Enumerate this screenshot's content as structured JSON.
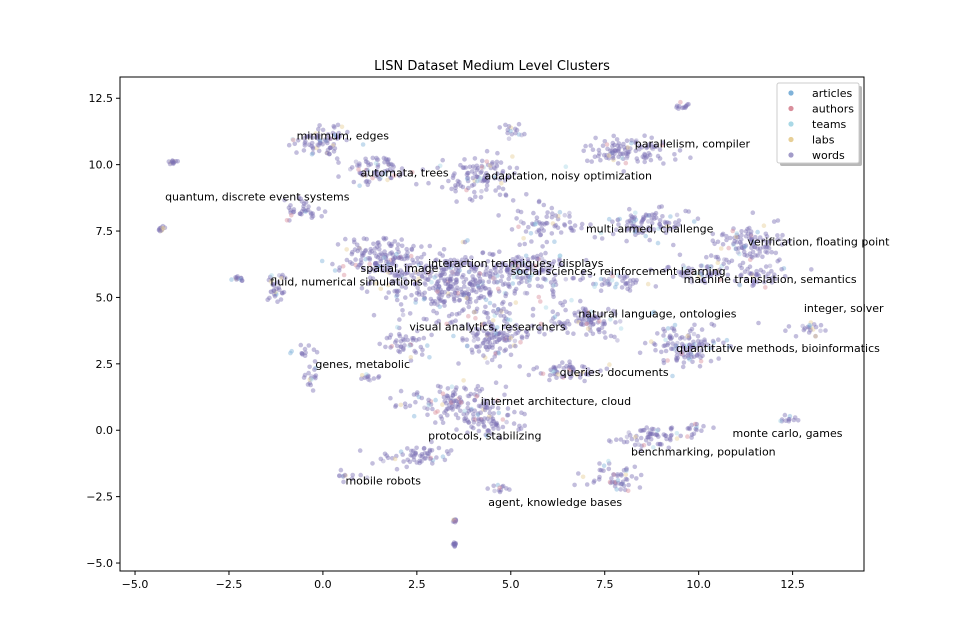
{
  "chart_data": {
    "type": "scatter",
    "title": "LISN Dataset Medium Level Clusters",
    "xlabel": "",
    "ylabel": "",
    "xlim": [
      -5.4,
      14.4
    ],
    "ylim": [
      -5.3,
      13.3
    ],
    "xticks": [
      -5.0,
      -2.5,
      0.0,
      2.5,
      5.0,
      7.5,
      10.0,
      12.5
    ],
    "xtick_labels": [
      "−5.0",
      "−2.5",
      "0.0",
      "2.5",
      "5.0",
      "7.5",
      "10.0",
      "12.5"
    ],
    "yticks": [
      -5.0,
      -2.5,
      0.0,
      2.5,
      5.0,
      7.5,
      10.0,
      12.5
    ],
    "ytick_labels": [
      "−5.0",
      "−2.5",
      "0.0",
      "2.5",
      "5.0",
      "7.5",
      "10.0",
      "12.5"
    ],
    "grid": false,
    "legend_position": "top-right",
    "series": [
      {
        "name": "articles",
        "color": "#7fb2d9"
      },
      {
        "name": "authors",
        "color": "#d98f9c"
      },
      {
        "name": "teams",
        "color": "#a9d8e6"
      },
      {
        "name": "labs",
        "color": "#e7cf97"
      },
      {
        "name": "words",
        "color": "#a29bc9"
      }
    ],
    "point_color": "#7b6fb3",
    "clusters": [
      {
        "x": 0.0,
        "y": 11.0,
        "spread": [
          0.7,
          0.6
        ]
      },
      {
        "x": -4.0,
        "y": 10.1,
        "spread": [
          0.1,
          0.1
        ]
      },
      {
        "x": 1.5,
        "y": 9.8,
        "spread": [
          0.8,
          0.5
        ]
      },
      {
        "x": 4.2,
        "y": 9.5,
        "spread": [
          0.9,
          0.7
        ]
      },
      {
        "x": 5.0,
        "y": 11.3,
        "spread": [
          0.3,
          0.3
        ]
      },
      {
        "x": 8.0,
        "y": 10.5,
        "spread": [
          1.2,
          0.5
        ]
      },
      {
        "x": 9.6,
        "y": 12.2,
        "spread": [
          0.2,
          0.1
        ]
      },
      {
        "x": -0.5,
        "y": 8.3,
        "spread": [
          0.5,
          0.4
        ]
      },
      {
        "x": -4.3,
        "y": 7.6,
        "spread": [
          0.1,
          0.1
        ]
      },
      {
        "x": 6.0,
        "y": 7.8,
        "spread": [
          0.7,
          0.5
        ]
      },
      {
        "x": 8.5,
        "y": 7.8,
        "spread": [
          1.1,
          0.5
        ]
      },
      {
        "x": 11.3,
        "y": 7.0,
        "spread": [
          0.9,
          0.7
        ]
      },
      {
        "x": 1.5,
        "y": 6.5,
        "spread": [
          1.0,
          0.8
        ]
      },
      {
        "x": 3.5,
        "y": 5.5,
        "spread": [
          1.8,
          1.2
        ]
      },
      {
        "x": 5.5,
        "y": 6.0,
        "spread": [
          1.0,
          0.7
        ]
      },
      {
        "x": -1.3,
        "y": 5.3,
        "spread": [
          0.3,
          0.6
        ]
      },
      {
        "x": -2.2,
        "y": 5.7,
        "spread": [
          0.2,
          0.1
        ]
      },
      {
        "x": 7.8,
        "y": 5.6,
        "spread": [
          0.8,
          0.3
        ]
      },
      {
        "x": 10.0,
        "y": 6.0,
        "spread": [
          0.8,
          0.4
        ]
      },
      {
        "x": 11.6,
        "y": 5.8,
        "spread": [
          0.6,
          0.4
        ]
      },
      {
        "x": 13.0,
        "y": 3.8,
        "spread": [
          0.4,
          0.3
        ]
      },
      {
        "x": 7.0,
        "y": 4.2,
        "spread": [
          0.9,
          0.6
        ]
      },
      {
        "x": 9.6,
        "y": 3.2,
        "spread": [
          1.0,
          0.7
        ]
      },
      {
        "x": 4.5,
        "y": 3.5,
        "spread": [
          1.0,
          0.8
        ]
      },
      {
        "x": 2.2,
        "y": 3.3,
        "spread": [
          0.5,
          0.5
        ]
      },
      {
        "x": -0.5,
        "y": 3.0,
        "spread": [
          0.3,
          0.2
        ]
      },
      {
        "x": -0.3,
        "y": 2.0,
        "spread": [
          0.2,
          0.5
        ]
      },
      {
        "x": 1.2,
        "y": 2.0,
        "spread": [
          0.3,
          0.2
        ]
      },
      {
        "x": 6.5,
        "y": 2.2,
        "spread": [
          0.8,
          0.4
        ]
      },
      {
        "x": 3.5,
        "y": 1.0,
        "spread": [
          1.2,
          0.6
        ]
      },
      {
        "x": 4.5,
        "y": 0.3,
        "spread": [
          0.7,
          0.5
        ]
      },
      {
        "x": 8.8,
        "y": -0.3,
        "spread": [
          0.9,
          0.4
        ]
      },
      {
        "x": 10.0,
        "y": 0.0,
        "spread": [
          0.3,
          0.3
        ]
      },
      {
        "x": 12.4,
        "y": 0.4,
        "spread": [
          0.2,
          0.2
        ]
      },
      {
        "x": 2.5,
        "y": -1.0,
        "spread": [
          0.8,
          0.4
        ]
      },
      {
        "x": 7.8,
        "y": -1.8,
        "spread": [
          0.6,
          0.5
        ]
      },
      {
        "x": 4.7,
        "y": -2.2,
        "spread": [
          0.3,
          0.2
        ]
      },
      {
        "x": 0.7,
        "y": -1.7,
        "spread": [
          0.3,
          0.2
        ]
      },
      {
        "x": 3.5,
        "y": -3.4,
        "spread": [
          0.05,
          0.05
        ]
      },
      {
        "x": 3.5,
        "y": -4.3,
        "spread": [
          0.05,
          0.05
        ]
      }
    ],
    "annotations": [
      {
        "text": "minimum, edges",
        "x": -0.7,
        "y": 11.1
      },
      {
        "text": "parallelism, compiler",
        "x": 8.3,
        "y": 10.8
      },
      {
        "text": "automata, trees",
        "x": 1.0,
        "y": 9.7
      },
      {
        "text": "adaptation, noisy optimization",
        "x": 4.3,
        "y": 9.6
      },
      {
        "text": "quantum, discrete event systems",
        "x": -4.2,
        "y": 8.8
      },
      {
        "text": "multi armed, challenge",
        "x": 7.0,
        "y": 7.6
      },
      {
        "text": "verification, floating point",
        "x": 11.3,
        "y": 7.1
      },
      {
        "text": "interaction techniques, displays",
        "x": 2.8,
        "y": 6.3
      },
      {
        "text": "spatial, image",
        "x": 1.0,
        "y": 6.1
      },
      {
        "text": "social sciences, reinforcement learning",
        "x": 5.0,
        "y": 6.0
      },
      {
        "text": "machine translation, semantics",
        "x": 9.6,
        "y": 5.7
      },
      {
        "text": "fluid, numerical simulations",
        "x": -1.4,
        "y": 5.6
      },
      {
        "text": "integer, solver",
        "x": 12.8,
        "y": 4.6
      },
      {
        "text": "natural language, ontologies",
        "x": 6.8,
        "y": 4.4
      },
      {
        "text": "visual analytics, researchers",
        "x": 2.3,
        "y": 3.9
      },
      {
        "text": "quantitative methods, bioinformatics",
        "x": 9.4,
        "y": 3.1
      },
      {
        "text": "genes, metabolic",
        "x": -0.2,
        "y": 2.5
      },
      {
        "text": "queries, documents",
        "x": 6.3,
        "y": 2.2
      },
      {
        "text": "internet architecture, cloud",
        "x": 4.2,
        "y": 1.1
      },
      {
        "text": "monte carlo, games",
        "x": 10.9,
        "y": -0.1
      },
      {
        "text": "protocols, stabilizing",
        "x": 2.8,
        "y": -0.2
      },
      {
        "text": "benchmarking, population",
        "x": 8.2,
        "y": -0.8
      },
      {
        "text": "mobile robots",
        "x": 0.6,
        "y": -1.9
      },
      {
        "text": "agent, knowledge bases",
        "x": 4.4,
        "y": -2.7
      }
    ]
  }
}
